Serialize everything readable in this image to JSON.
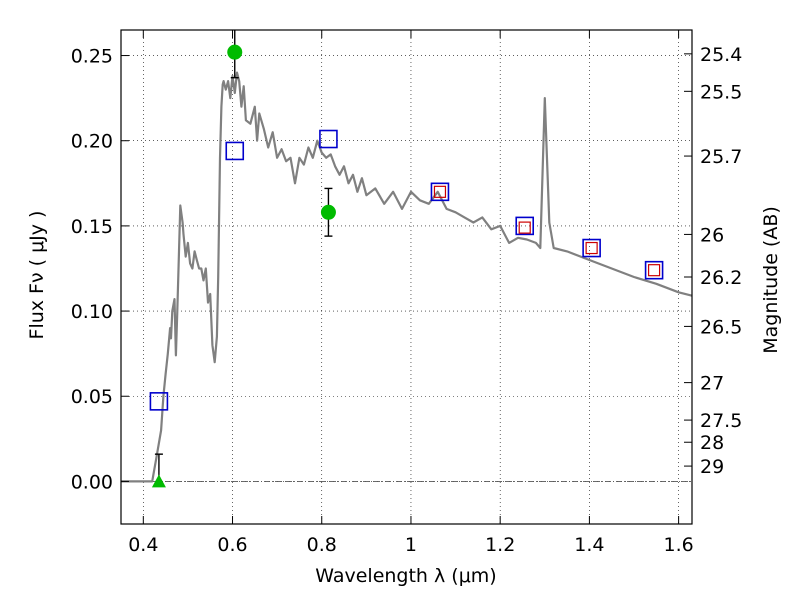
{
  "chart_data": {
    "type": "scatter",
    "xlabel": "Wavelength  λ (μm)",
    "ylabel_left": "Flux  Fν  ( μJy )",
    "ylabel_right": "Magnitude (AB)",
    "xlim": [
      0.35,
      1.63
    ],
    "ylim": [
      -0.025,
      0.265
    ],
    "xticks": [
      0.4,
      0.6,
      0.8,
      1.0,
      1.2,
      1.4,
      1.6
    ],
    "xtick_labels": [
      "0.4",
      "0.6",
      "0.8",
      "1",
      "1.2",
      "1.4",
      "1.6"
    ],
    "yticks": [
      0.0,
      0.05,
      0.1,
      0.15,
      0.2,
      0.25
    ],
    "ytick_labels": [
      "0.00",
      "0.05",
      "0.10",
      "0.15",
      "0.20",
      "0.25"
    ],
    "magnitude_ticks": [
      {
        "label": "25.4",
        "flux": 0.251
      },
      {
        "label": "25.5",
        "flux": 0.229
      },
      {
        "label": "25.7",
        "flux": 0.191
      },
      {
        "label": "26",
        "flux": 0.145
      },
      {
        "label": "26.2",
        "flux": 0.12
      },
      {
        "label": "26.5",
        "flux": 0.091
      },
      {
        "label": "27",
        "flux": 0.058
      },
      {
        "label": "27.5",
        "flux": 0.036
      },
      {
        "label": "28",
        "flux": 0.023
      },
      {
        "label": "29",
        "flux": 0.009
      }
    ],
    "grid": true,
    "model_sed": {
      "color": "#808080",
      "x": [
        0.35,
        0.42,
        0.43,
        0.44,
        0.445,
        0.45,
        0.455,
        0.46,
        0.462,
        0.465,
        0.47,
        0.473,
        0.476,
        0.48,
        0.483,
        0.485,
        0.488,
        0.49,
        0.495,
        0.5,
        0.505,
        0.51,
        0.515,
        0.52,
        0.525,
        0.53,
        0.535,
        0.54,
        0.545,
        0.55,
        0.555,
        0.56,
        0.565,
        0.568,
        0.572,
        0.575,
        0.578,
        0.58,
        0.585,
        0.59,
        0.595,
        0.6,
        0.605,
        0.61,
        0.615,
        0.62,
        0.625,
        0.63,
        0.64,
        0.65,
        0.655,
        0.66,
        0.67,
        0.68,
        0.69,
        0.7,
        0.71,
        0.72,
        0.73,
        0.74,
        0.75,
        0.76,
        0.77,
        0.78,
        0.79,
        0.8,
        0.81,
        0.82,
        0.83,
        0.84,
        0.85,
        0.86,
        0.87,
        0.88,
        0.89,
        0.9,
        0.92,
        0.94,
        0.96,
        0.98,
        1.0,
        1.02,
        1.04,
        1.06,
        1.08,
        1.1,
        1.12,
        1.14,
        1.16,
        1.18,
        1.2,
        1.22,
        1.24,
        1.26,
        1.28,
        1.29,
        1.3,
        1.31,
        1.32,
        1.35,
        1.4,
        1.45,
        1.5,
        1.55,
        1.6,
        1.63
      ],
      "y": [
        0.0,
        0.0,
        0.015,
        0.03,
        0.05,
        0.063,
        0.075,
        0.09,
        0.084,
        0.1,
        0.107,
        0.074,
        0.098,
        0.135,
        0.162,
        0.158,
        0.152,
        0.145,
        0.132,
        0.14,
        0.128,
        0.125,
        0.135,
        0.13,
        0.125,
        0.125,
        0.118,
        0.125,
        0.105,
        0.11,
        0.08,
        0.07,
        0.085,
        0.12,
        0.19,
        0.22,
        0.233,
        0.235,
        0.23,
        0.235,
        0.225,
        0.238,
        0.228,
        0.24,
        0.235,
        0.22,
        0.232,
        0.212,
        0.21,
        0.22,
        0.2,
        0.216,
        0.207,
        0.196,
        0.205,
        0.19,
        0.195,
        0.188,
        0.19,
        0.175,
        0.19,
        0.186,
        0.196,
        0.19,
        0.2,
        0.193,
        0.19,
        0.192,
        0.185,
        0.18,
        0.185,
        0.175,
        0.18,
        0.17,
        0.178,
        0.168,
        0.172,
        0.163,
        0.17,
        0.16,
        0.17,
        0.165,
        0.163,
        0.17,
        0.16,
        0.158,
        0.155,
        0.152,
        0.155,
        0.148,
        0.15,
        0.14,
        0.143,
        0.142,
        0.14,
        0.137,
        0.225,
        0.152,
        0.137,
        0.135,
        0.13,
        0.125,
        0.12,
        0.116,
        0.111,
        0.109
      ]
    },
    "blue_squares": {
      "color": "#0000cc",
      "x": [
        0.435,
        0.605,
        0.815,
        1.065,
        1.255,
        1.405,
        1.545
      ],
      "y": [
        0.047,
        0.194,
        0.201,
        0.17,
        0.15,
        0.137,
        0.124
      ]
    },
    "red_squares": {
      "color": "#cc0000",
      "x": [
        1.065,
        1.255,
        1.405,
        1.545
      ],
      "y": [
        0.17,
        0.149,
        0.137,
        0.124
      ]
    },
    "green_points": {
      "color": "#00bb00",
      "points": [
        {
          "x": 0.605,
          "y": 0.252,
          "err_low": 0.015,
          "err_high": 0.02
        },
        {
          "x": 0.815,
          "y": 0.158,
          "err_low": 0.014,
          "err_high": 0.014
        }
      ]
    },
    "upper_limit": {
      "x": 0.435,
      "y": 0.0,
      "err_high": 0.016,
      "color": "#00bb00"
    }
  }
}
